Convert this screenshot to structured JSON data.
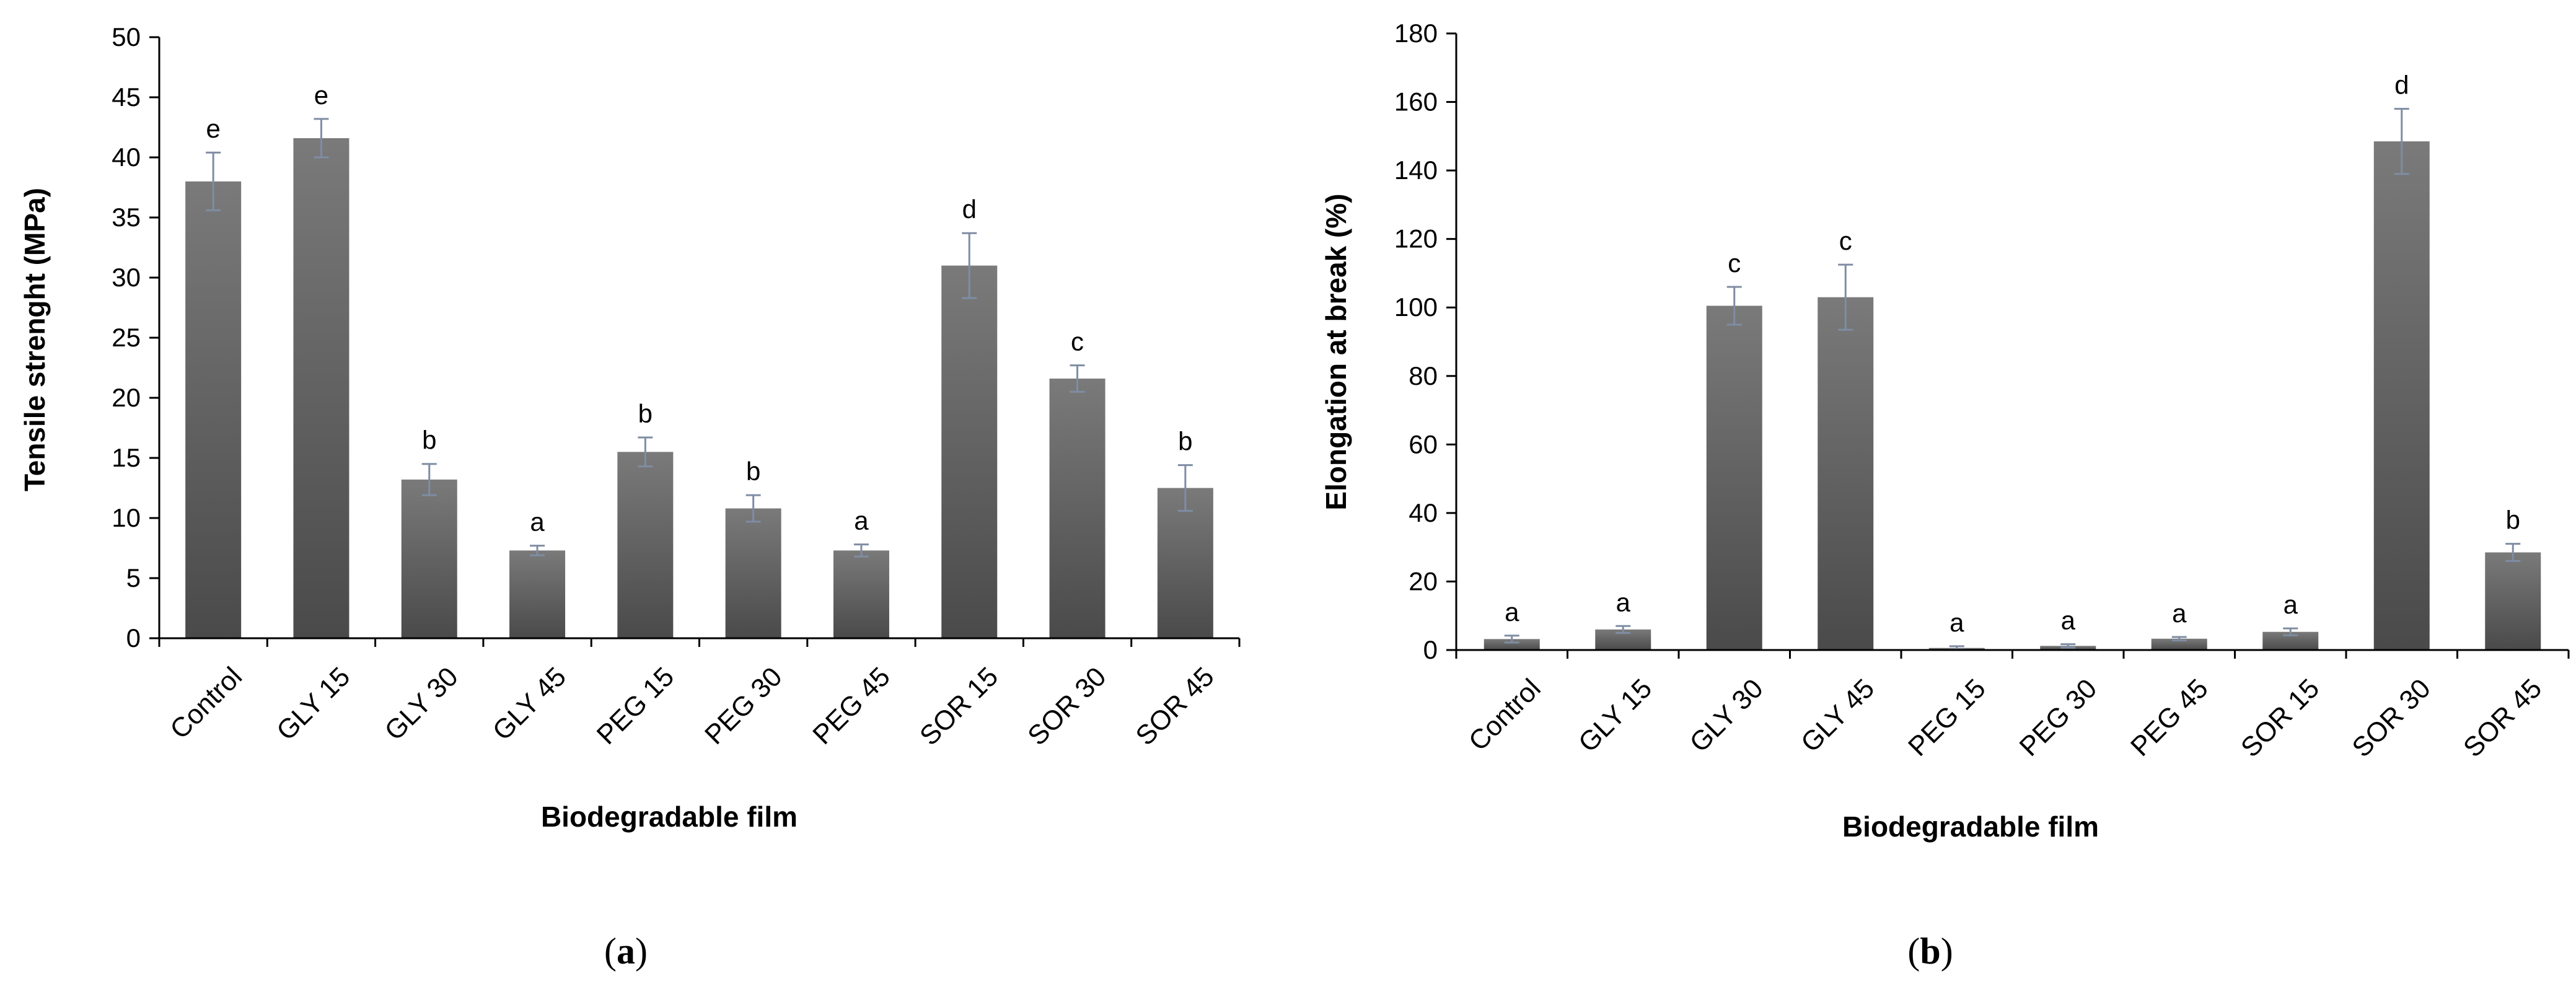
{
  "colors": {
    "bar_dark": "#4a4a4a",
    "bar_light": "#7a7a7a",
    "error_bar": "#7f8da3",
    "axis": "#000000"
  },
  "chart_data": [
    {
      "id": "a",
      "type": "bar",
      "panel_label": "a",
      "title": "",
      "xlabel": "Biodegradable film",
      "ylabel": "Tensile strenght  (MPa)",
      "ylim": [
        0,
        50
      ],
      "yticks": [
        0,
        5,
        10,
        15,
        20,
        25,
        30,
        35,
        40,
        45,
        50
      ],
      "grid": false,
      "categories": [
        "Control",
        "GLY 15",
        "GLY 30",
        "GLY 45",
        "PEG 15",
        "PEG 30",
        "PEG 45",
        "SOR 15",
        "SOR 30",
        "SOR 45"
      ],
      "values": [
        38.0,
        41.6,
        13.2,
        7.3,
        15.5,
        10.8,
        7.3,
        31.0,
        21.6,
        12.5
      ],
      "errors": [
        2.4,
        1.6,
        1.3,
        0.4,
        1.2,
        1.1,
        0.5,
        2.7,
        1.1,
        1.9
      ],
      "significance": [
        "e",
        "e",
        "b",
        "a",
        "b",
        "b",
        "a",
        "d",
        "c",
        "b"
      ]
    },
    {
      "id": "b",
      "type": "bar",
      "panel_label": "b",
      "title": "",
      "xlabel": "Biodegradable film",
      "ylabel": "Elongation at break (%)",
      "ylim": [
        0,
        180
      ],
      "yticks": [
        0,
        20,
        40,
        60,
        80,
        100,
        120,
        140,
        160,
        180
      ],
      "grid": false,
      "categories": [
        "Control",
        "GLY 15",
        "GLY 30",
        "GLY 45",
        "PEG 15",
        "PEG 30",
        "PEG 45",
        "SOR 15",
        "SOR 30",
        "SOR 45"
      ],
      "values": [
        3.2,
        6.0,
        100.5,
        103.0,
        0.6,
        1.2,
        3.3,
        5.3,
        148.5,
        28.5
      ],
      "errors": [
        1.0,
        1.0,
        5.5,
        9.5,
        0.5,
        0.5,
        0.5,
        1.0,
        9.5,
        2.5
      ],
      "significance": [
        "a",
        "a",
        "c",
        "c",
        "a",
        "a",
        "a",
        "a",
        "d",
        "b"
      ]
    }
  ]
}
